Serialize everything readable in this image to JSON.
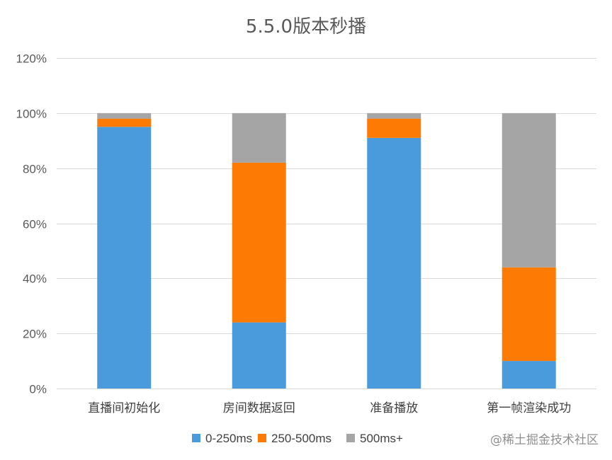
{
  "chart_data": {
    "type": "bar",
    "stacked": true,
    "title": "5.5.0版本秒播",
    "categories": [
      "直播间初始化",
      "房间数据返回",
      "准备播放",
      "第一帧渲染成功"
    ],
    "series": [
      {
        "name": "0-250ms",
        "color": "#4A9BDB",
        "values": [
          95,
          24,
          91,
          10
        ]
      },
      {
        "name": "250-500ms",
        "color": "#FD7B05",
        "values": [
          3,
          58,
          7,
          34
        ]
      },
      {
        "name": "500ms+",
        "color": "#A5A5A5",
        "values": [
          2,
          18,
          2,
          56
        ]
      }
    ],
    "ylim": [
      0,
      120
    ],
    "yticks": [
      0,
      20,
      40,
      60,
      80,
      100,
      120
    ],
    "ytick_labels": [
      "0%",
      "20%",
      "40%",
      "60%",
      "80%",
      "100%",
      "120%"
    ],
    "grid": true,
    "legend": "bottom"
  },
  "watermark": "@稀土掘金技术社区"
}
